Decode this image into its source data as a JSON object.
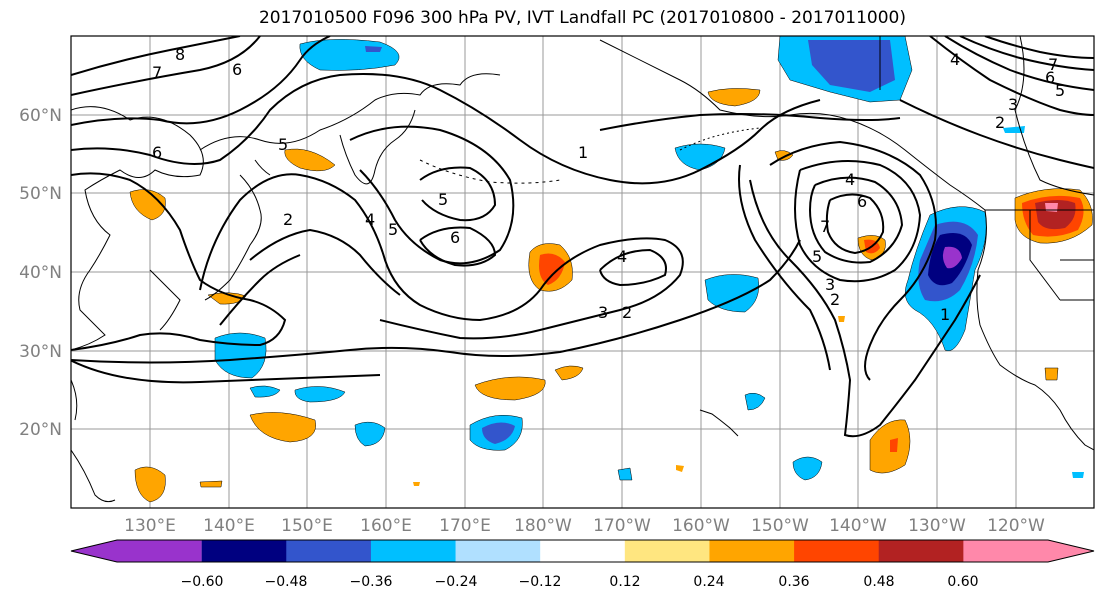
{
  "title": "2017010500 F096 300 hPa PV, IVT Landfall PC (2017010800 - 2017011000)",
  "lat_ticks": [
    "60°N",
    "50°N",
    "40°N",
    "30°N",
    "20°N"
  ],
  "lon_ticks": [
    "130°E",
    "140°E",
    "150°E",
    "160°E",
    "170°E",
    "180°W",
    "170°W",
    "160°W",
    "150°W",
    "140°W",
    "130°W",
    "120°W"
  ],
  "colorbar": {
    "colors": [
      "#9933cc",
      "#000080",
      "#3355cc",
      "#00bfff",
      "#b0e0ff",
      "#ffffff",
      "#ffe680",
      "#ffa500",
      "#ff4500",
      "#b22222",
      "#ff88aa"
    ],
    "tick_labels": [
      "−0.60",
      "−0.48",
      "−0.36",
      "−0.24",
      "−0.12",
      "0.12",
      "0.24",
      "0.36",
      "0.48",
      "0.60"
    ]
  },
  "contour_labels": [
    "8",
    "7",
    "6",
    "5",
    "6",
    "2",
    "4",
    "5",
    "5",
    "6",
    "1",
    "4",
    "3",
    "2",
    "4",
    "6",
    "7",
    "5",
    "3",
    "2",
    "1",
    "4",
    "7",
    "6",
    "5",
    "3",
    "2"
  ]
}
